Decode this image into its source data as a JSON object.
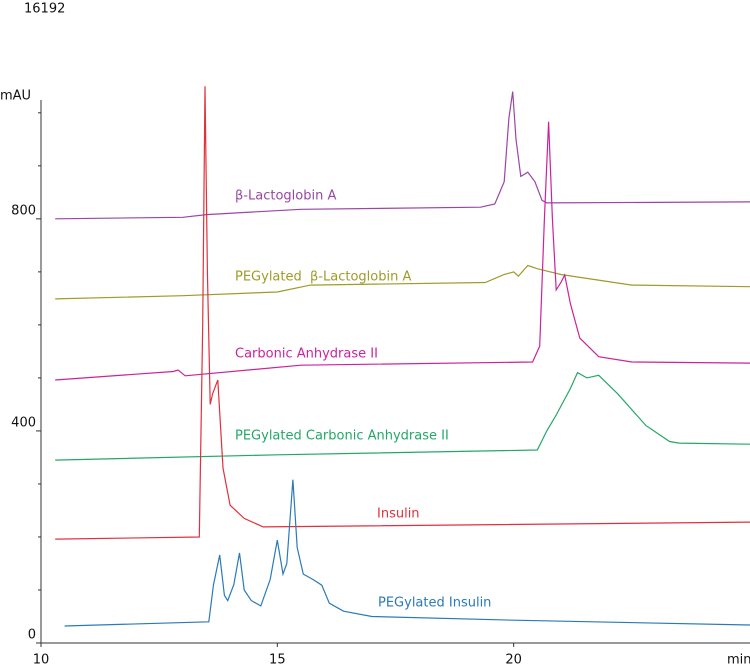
{
  "chart_data": {
    "type": "line",
    "annotation": "16192",
    "y_label": "mAU",
    "x_label": "min",
    "xlim": [
      10,
      25
    ],
    "xticks": [
      10,
      15,
      20
    ],
    "ylim": [
      0,
      1060
    ],
    "yticks": [
      0,
      400,
      800
    ],
    "yminor_ticks": [
      100,
      200,
      300,
      500,
      600,
      700,
      900,
      1000
    ],
    "series": [
      {
        "name": "β-Lactoglobin A",
        "color": "#9b45a6",
        "x": [
          10.3,
          13.0,
          13.5,
          15.5,
          19.3,
          19.6,
          19.8,
          19.9,
          19.98,
          20.05,
          20.15,
          20.3,
          20.45,
          20.6,
          20.7,
          25.0
        ],
        "y": [
          800,
          803,
          808,
          818,
          822,
          828,
          870,
          990,
          1040,
          950,
          880,
          888,
          870,
          835,
          830,
          832
        ]
      },
      {
        "name": "PEGylated  β-Lactoglobin A",
        "color": "#a09a2a",
        "x": [
          10.3,
          13.0,
          15.0,
          15.7,
          19.4,
          19.8,
          20.0,
          20.1,
          20.3,
          20.5,
          21.0,
          22.5,
          25.0
        ],
        "y": [
          649,
          655,
          662,
          675,
          680,
          695,
          700,
          692,
          712,
          706,
          695,
          675,
          672
        ]
      },
      {
        "name": "Carbonic Anhydrase II",
        "color": "#cc2299",
        "x": [
          10.3,
          12.8,
          12.9,
          13.05,
          15.5,
          20.4,
          20.55,
          20.65,
          20.74,
          20.82,
          20.9,
          21.0,
          21.08,
          21.2,
          21.4,
          21.8,
          22.5,
          25.0
        ],
        "y": [
          496,
          512,
          515,
          504,
          524,
          530,
          560,
          800,
          983,
          800,
          666,
          680,
          694,
          640,
          575,
          540,
          530,
          528
        ]
      },
      {
        "name": "PEGylated Carbonic Anhydrase II",
        "color": "#22a866",
        "x": [
          10.3,
          15.0,
          20.5,
          20.7,
          20.9,
          21.2,
          21.35,
          21.55,
          21.8,
          22.2,
          22.8,
          23.3,
          23.5,
          25.0
        ],
        "y": [
          345,
          355,
          364,
          400,
          430,
          480,
          510,
          500,
          505,
          470,
          410,
          380,
          377,
          375
        ]
      },
      {
        "name": "Insulin",
        "color": "#e0303c",
        "x": [
          10.3,
          13.35,
          13.42,
          13.47,
          13.52,
          13.58,
          13.63,
          13.74,
          13.85,
          14.0,
          14.3,
          14.7,
          25.0
        ],
        "y": [
          196,
          200,
          600,
          1050,
          700,
          450,
          470,
          496,
          330,
          260,
          235,
          219,
          228
        ]
      },
      {
        "name": "PEGylated Insulin",
        "color": "#2a7ab8",
        "x": [
          10.5,
          13.55,
          13.65,
          13.78,
          13.88,
          13.95,
          14.08,
          14.2,
          14.3,
          14.45,
          14.65,
          14.85,
          15.0,
          15.12,
          15.2,
          15.33,
          15.42,
          15.55,
          15.75,
          15.94,
          16.1,
          16.4,
          17.0,
          20.0,
          25.0
        ],
        "y": [
          32,
          40,
          110,
          166,
          90,
          80,
          110,
          170,
          100,
          80,
          70,
          120,
          194,
          130,
          150,
          308,
          180,
          130,
          120,
          109,
          75,
          60,
          50,
          43,
          34
        ]
      }
    ]
  }
}
